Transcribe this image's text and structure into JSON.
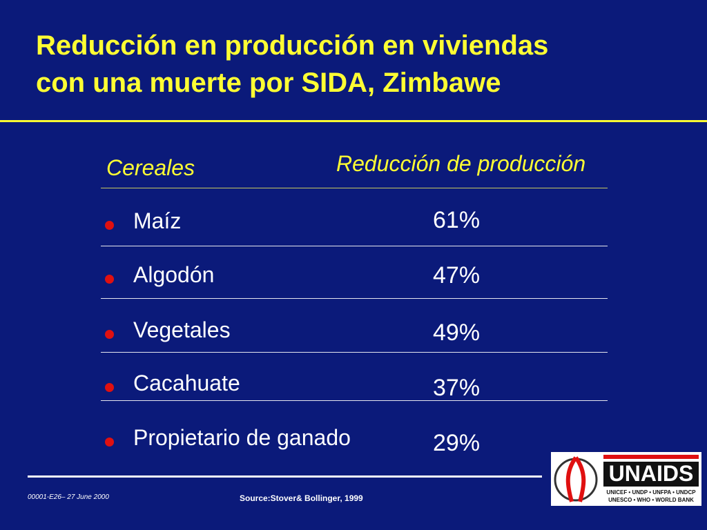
{
  "header": {
    "title": [
      "Reducción en producción en viviendas",
      "con una muerte por SIDA, Zimbawe"
    ]
  },
  "table": {
    "columns": [
      "Cereales",
      "Reducción de producción"
    ],
    "rows": [
      [
        "Maíz",
        "61%"
      ],
      [
        "Algodón",
        "47%"
      ],
      [
        "Vegetales",
        "49%"
      ],
      [
        "Cacahuate",
        "37%"
      ],
      [
        "Propietario de ganado",
        "29%"
      ]
    ]
  },
  "footer": {
    "code": "00001-E26– 27 June 2000",
    "source": "Source:Stover& Bollinger, 1999"
  },
  "logo": {
    "name": "UNAIDS",
    "members": [
      "UNICEF • UNDP • UNFPA • UNDCP",
      "UNESCO • WHO • WORLD BANK"
    ]
  }
}
